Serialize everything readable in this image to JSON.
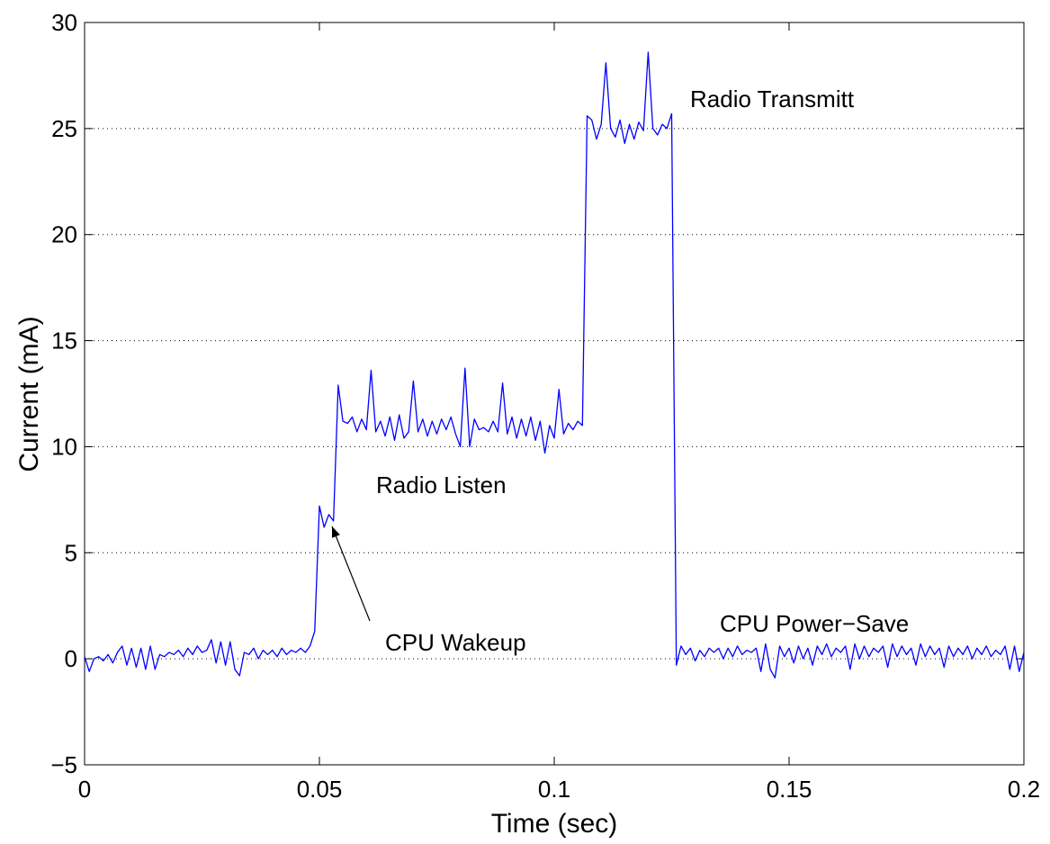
{
  "chart_data": {
    "type": "line",
    "xlabel": "Time (sec)",
    "ylabel": "Current (mA)",
    "xlim": [
      0,
      0.2
    ],
    "ylim": [
      -5,
      30
    ],
    "xticks": [
      0,
      0.05,
      0.1,
      0.15,
      0.2
    ],
    "yticks": [
      {
        "value": -5,
        "label": "−5"
      },
      0,
      5,
      10,
      15,
      20,
      25,
      30
    ],
    "grid": "y",
    "color": "#0000ff",
    "annotations": [
      "Radio Transmitt",
      "Radio Listen",
      "CPU Wakeup",
      "CPU Power−Save"
    ],
    "x": [
      0,
      0.001,
      0.002,
      0.003,
      0.004,
      0.005,
      0.006,
      0.007,
      0.008,
      0.009,
      0.01,
      0.011,
      0.012,
      0.013,
      0.014,
      0.015,
      0.016,
      0.017,
      0.018,
      0.019,
      0.02,
      0.021,
      0.022,
      0.023,
      0.024,
      0.025,
      0.026,
      0.027,
      0.028,
      0.029,
      0.03,
      0.031,
      0.032,
      0.033,
      0.034,
      0.035,
      0.036,
      0.037,
      0.038,
      0.039,
      0.04,
      0.041,
      0.042,
      0.043,
      0.044,
      0.045,
      0.046,
      0.047,
      0.048,
      0.049,
      0.05,
      0.051,
      0.052,
      0.053,
      0.054,
      0.055,
      0.056,
      0.057,
      0.058,
      0.059,
      0.06,
      0.061,
      0.062,
      0.063,
      0.064,
      0.065,
      0.066,
      0.067,
      0.068,
      0.069,
      0.07,
      0.071,
      0.072,
      0.073,
      0.074,
      0.075,
      0.076,
      0.077,
      0.078,
      0.079,
      0.08,
      0.081,
      0.082,
      0.083,
      0.084,
      0.085,
      0.086,
      0.087,
      0.088,
      0.089,
      0.09,
      0.091,
      0.092,
      0.093,
      0.094,
      0.095,
      0.096,
      0.097,
      0.098,
      0.099,
      0.1,
      0.101,
      0.102,
      0.103,
      0.104,
      0.105,
      0.106,
      0.107,
      0.108,
      0.109,
      0.11,
      0.111,
      0.112,
      0.113,
      0.114,
      0.115,
      0.116,
      0.117,
      0.118,
      0.119,
      0.12,
      0.121,
      0.122,
      0.123,
      0.124,
      0.125,
      0.126,
      0.127,
      0.128,
      0.129,
      0.13,
      0.131,
      0.132,
      0.133,
      0.134,
      0.135,
      0.136,
      0.137,
      0.138,
      0.139,
      0.14,
      0.141,
      0.142,
      0.143,
      0.144,
      0.145,
      0.146,
      0.147,
      0.148,
      0.149,
      0.15,
      0.151,
      0.152,
      0.153,
      0.154,
      0.155,
      0.156,
      0.157,
      0.158,
      0.159,
      0.16,
      0.161,
      0.162,
      0.163,
      0.164,
      0.165,
      0.166,
      0.167,
      0.168,
      0.169,
      0.17,
      0.171,
      0.172,
      0.173,
      0.174,
      0.175,
      0.176,
      0.177,
      0.178,
      0.179,
      0.18,
      0.181,
      0.182,
      0.183,
      0.184,
      0.185,
      0.186,
      0.187,
      0.188,
      0.189,
      0.19,
      0.191,
      0.192,
      0.193,
      0.194,
      0.195,
      0.196,
      0.197,
      0.198,
      0.199,
      0.2
    ],
    "values": [
      0.1,
      -0.6,
      0.0,
      0.1,
      -0.1,
      0.2,
      -0.2,
      0.3,
      0.6,
      -0.3,
      0.5,
      -0.4,
      0.5,
      -0.5,
      0.6,
      -0.5,
      0.2,
      0.1,
      0.3,
      0.2,
      0.4,
      0.1,
      0.5,
      0.2,
      0.6,
      0.3,
      0.4,
      0.9,
      -0.2,
      0.8,
      -0.3,
      0.8,
      -0.5,
      -0.8,
      0.3,
      0.2,
      0.5,
      0.0,
      0.4,
      0.2,
      0.4,
      0.1,
      0.5,
      0.2,
      0.4,
      0.3,
      0.5,
      0.3,
      0.6,
      1.3,
      7.2,
      6.2,
      6.8,
      6.5,
      12.9,
      11.2,
      11.1,
      11.4,
      10.7,
      11.3,
      10.8,
      13.6,
      10.7,
      11.2,
      10.5,
      11.4,
      10.3,
      11.5,
      10.4,
      10.7,
      13.1,
      10.7,
      11.3,
      10.5,
      11.2,
      10.6,
      11.3,
      10.8,
      11.4,
      10.6,
      10.0,
      13.7,
      10.0,
      11.3,
      10.8,
      10.9,
      10.7,
      11.2,
      10.7,
      13.0,
      10.6,
      11.4,
      10.4,
      11.3,
      10.5,
      11.4,
      10.3,
      11.2,
      9.7,
      11.0,
      10.4,
      12.7,
      10.6,
      11.1,
      10.8,
      11.2,
      11.0,
      25.6,
      25.4,
      24.5,
      25.2,
      28.1,
      25.0,
      24.6,
      25.4,
      24.3,
      25.2,
      24.5,
      25.3,
      24.9,
      28.6,
      25.0,
      24.7,
      25.2,
      25.0,
      25.7,
      -0.3,
      0.6,
      0.2,
      0.5,
      -0.1,
      0.4,
      0.1,
      0.5,
      0.3,
      0.5,
      0.0,
      0.5,
      0.1,
      0.6,
      0.2,
      0.4,
      0.3,
      0.5,
      -0.6,
      0.7,
      -0.5,
      -0.9,
      0.6,
      0.1,
      0.5,
      -0.2,
      0.6,
      0.0,
      0.5,
      -0.3,
      0.6,
      0.2,
      0.7,
      0.1,
      0.5,
      0.3,
      0.6,
      -0.5,
      0.7,
      0.0,
      0.6,
      0.1,
      0.5,
      0.3,
      0.6,
      -0.4,
      0.7,
      0.1,
      0.6,
      0.2,
      0.5,
      -0.3,
      0.7,
      0.1,
      0.6,
      0.2,
      0.5,
      -0.4,
      0.6,
      0.1,
      0.5,
      0.2,
      0.6,
      0.0,
      0.5,
      0.2,
      0.6,
      0.1,
      0.4,
      0.2,
      0.6,
      -0.5,
      0.6,
      -0.6,
      0.3
    ]
  }
}
